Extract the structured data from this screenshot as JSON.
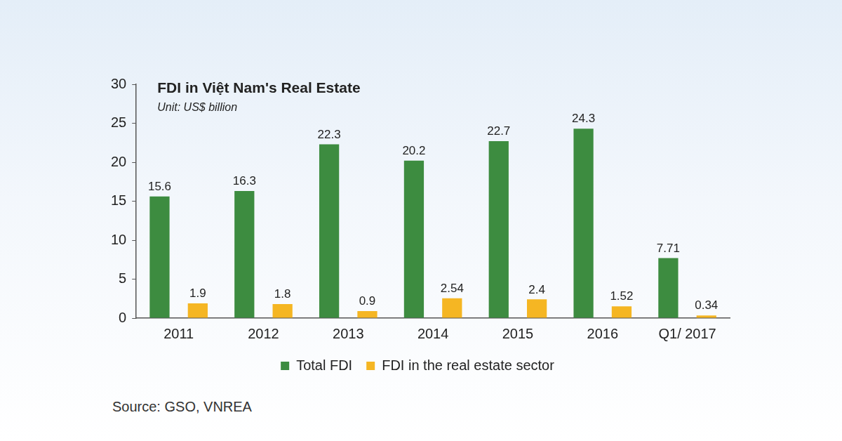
{
  "chart_data": {
    "type": "bar",
    "title": "FDI in Việt Nam's Real Estate",
    "subtitle": "Unit: US$ billion",
    "source": "Source: GSO, VNREA",
    "categories": [
      "2011",
      "2012",
      "2013",
      "2014",
      "2015",
      "2016",
      "Q1/ 2017"
    ],
    "series": [
      {
        "name": "Total FDI",
        "color": "#3d8c40",
        "values": [
          15.6,
          16.3,
          22.3,
          20.2,
          22.7,
          24.3,
          7.71
        ]
      },
      {
        "name": "FDI in the real estate sector",
        "color": "#f5b623",
        "values": [
          1.9,
          1.8,
          0.9,
          2.54,
          2.4,
          1.52,
          0.34
        ]
      }
    ],
    "ylim": [
      0,
      30
    ],
    "yticks": [
      0,
      5,
      10,
      15,
      20,
      25,
      30
    ],
    "grid": false,
    "legend": "bottom",
    "data_labels": true
  }
}
